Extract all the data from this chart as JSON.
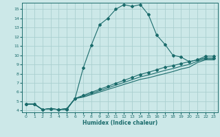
{
  "xlabel": "Humidex (Indice chaleur)",
  "background_color": "#cce8e8",
  "grid_color": "#aacfcf",
  "line_color": "#1a6b6b",
  "xlim": [
    -0.5,
    23.5
  ],
  "ylim": [
    3.8,
    15.7
  ],
  "xticks": [
    0,
    1,
    2,
    3,
    4,
    5,
    6,
    7,
    8,
    9,
    10,
    11,
    12,
    13,
    14,
    15,
    16,
    17,
    18,
    19,
    20,
    21,
    22,
    23
  ],
  "yticks": [
    4,
    5,
    6,
    7,
    8,
    9,
    10,
    11,
    12,
    13,
    14,
    15
  ],
  "main_x": [
    0,
    1,
    2,
    3,
    4,
    5,
    6,
    7,
    8,
    9,
    10,
    11,
    12,
    13,
    14,
    15,
    16,
    17,
    18,
    19,
    20,
    21,
    22,
    23
  ],
  "main_y": [
    4.7,
    4.7,
    4.1,
    4.2,
    4.1,
    4.1,
    5.3,
    8.6,
    11.1,
    13.3,
    14.0,
    15.0,
    15.5,
    15.3,
    15.5,
    14.4,
    12.2,
    11.2,
    10.0,
    9.8,
    9.3,
    9.5,
    9.9,
    9.9
  ],
  "diag1_x": [
    0,
    1,
    2,
    3,
    4,
    5,
    6,
    7,
    8,
    9,
    10,
    11,
    12,
    13,
    14,
    15,
    16,
    17,
    18,
    19,
    20,
    21,
    22,
    23
  ],
  "diag1_y": [
    4.7,
    4.7,
    4.1,
    4.2,
    4.1,
    4.2,
    5.3,
    5.45,
    5.72,
    6.0,
    6.28,
    6.55,
    6.83,
    7.1,
    7.38,
    7.55,
    7.78,
    8.0,
    8.23,
    8.5,
    8.7,
    9.2,
    9.5,
    9.5
  ],
  "diag2_x": [
    0,
    1,
    2,
    3,
    4,
    5,
    6,
    7,
    8,
    9,
    10,
    11,
    12,
    13,
    14,
    15,
    16,
    17,
    18,
    19,
    20,
    21,
    22,
    23
  ],
  "diag2_y": [
    4.7,
    4.7,
    4.1,
    4.2,
    4.1,
    4.2,
    5.3,
    5.55,
    5.85,
    6.15,
    6.45,
    6.75,
    7.05,
    7.35,
    7.65,
    7.85,
    8.1,
    8.35,
    8.55,
    8.8,
    9.0,
    9.35,
    9.6,
    9.6
  ],
  "diag3_x": [
    0,
    1,
    2,
    3,
    4,
    5,
    6,
    7,
    8,
    9,
    10,
    11,
    12,
    13,
    14,
    15,
    16,
    17,
    18,
    19,
    20,
    21,
    22,
    23
  ],
  "diag3_y": [
    4.7,
    4.7,
    4.1,
    4.2,
    4.1,
    4.2,
    5.3,
    5.65,
    5.98,
    6.3,
    6.62,
    6.95,
    7.27,
    7.6,
    7.92,
    8.15,
    8.42,
    8.7,
    8.87,
    9.1,
    9.3,
    9.5,
    9.7,
    9.7
  ]
}
